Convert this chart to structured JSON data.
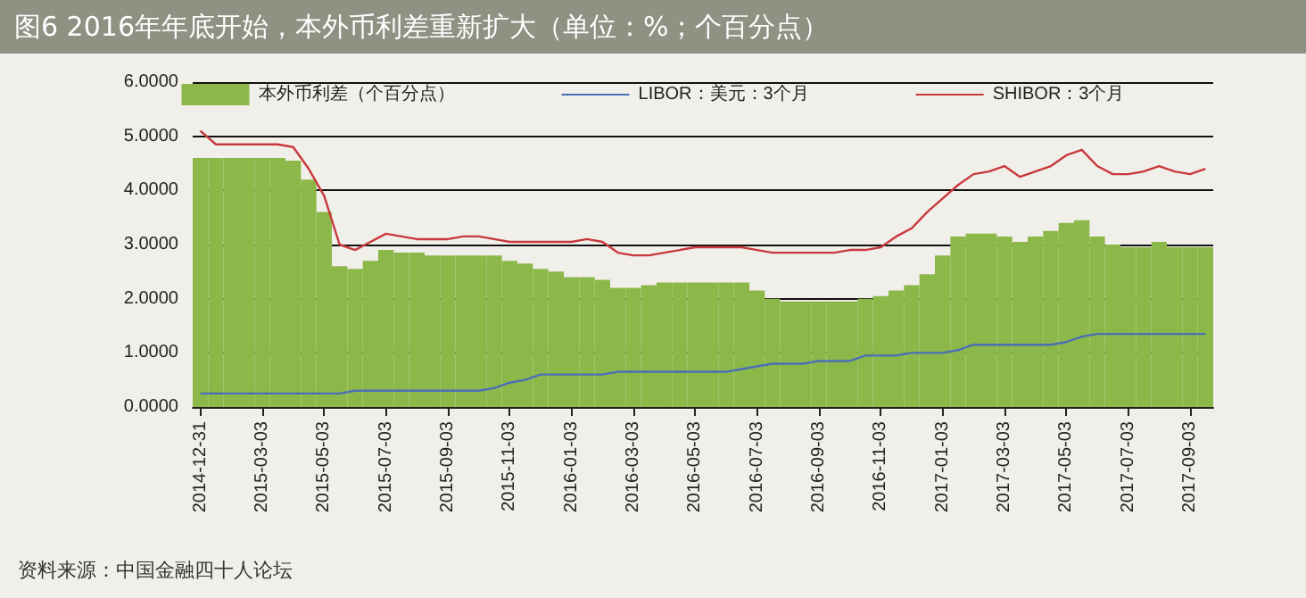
{
  "chart_data": {
    "type": "bar",
    "title": "图6  2016年年底开始，本外币利差重新扩大（单位：%；个百分点）",
    "categories": [
      "2014-12-31",
      null,
      null,
      null,
      "2015-03-03",
      null,
      null,
      null,
      "2015-05-03",
      null,
      null,
      null,
      "2015-07-03",
      null,
      null,
      null,
      "2015-09-03",
      null,
      null,
      null,
      "2015-11-03",
      null,
      null,
      null,
      "2016-01-03",
      null,
      null,
      null,
      "2016-03-03",
      null,
      null,
      null,
      "2016-05-03",
      null,
      null,
      null,
      "2016-07-03",
      null,
      null,
      null,
      "2016-09-03",
      null,
      null,
      null,
      "2016-11-03",
      null,
      null,
      null,
      "2017-01-03",
      null,
      null,
      null,
      "2017-03-03",
      null,
      null,
      null,
      "2017-05-03",
      null,
      null,
      null,
      "2017-07-03",
      null,
      null,
      null,
      "2017-09-03",
      null
    ],
    "series": [
      {
        "name": "本外币利差（个百分点）",
        "color": "#8cb84a",
        "values": [
          4.6,
          4.6,
          4.6,
          4.6,
          4.6,
          4.6,
          4.55,
          4.2,
          3.6,
          2.6,
          2.55,
          2.7,
          2.9,
          2.85,
          2.85,
          2.8,
          2.8,
          2.8,
          2.8,
          2.8,
          2.7,
          2.65,
          2.55,
          2.5,
          2.4,
          2.4,
          2.35,
          2.2,
          2.2,
          2.25,
          2.3,
          2.3,
          2.3,
          2.3,
          2.3,
          2.3,
          2.15,
          2.0,
          1.95,
          1.95,
          1.95,
          1.95,
          1.95,
          2.0,
          2.05,
          2.15,
          2.25,
          2.45,
          2.8,
          3.15,
          3.2,
          3.2,
          3.15,
          3.05,
          3.15,
          3.25,
          3.4,
          3.45,
          3.15,
          3.0,
          2.95,
          2.95,
          3.05,
          2.95,
          2.95,
          2.95
        ]
      },
      {
        "name": "LIBOR：美元：3个月",
        "type": "line",
        "color": "#4a6fb5",
        "values": [
          0.25,
          0.25,
          0.25,
          0.25,
          0.25,
          0.25,
          0.25,
          0.25,
          0.25,
          0.25,
          0.3,
          0.3,
          0.3,
          0.3,
          0.3,
          0.3,
          0.3,
          0.3,
          0.3,
          0.35,
          0.45,
          0.5,
          0.6,
          0.6,
          0.6,
          0.6,
          0.6,
          0.65,
          0.65,
          0.65,
          0.65,
          0.65,
          0.65,
          0.65,
          0.65,
          0.7,
          0.75,
          0.8,
          0.8,
          0.8,
          0.85,
          0.85,
          0.85,
          0.95,
          0.95,
          0.95,
          1.0,
          1.0,
          1.0,
          1.05,
          1.15,
          1.15,
          1.15,
          1.15,
          1.15,
          1.15,
          1.2,
          1.3,
          1.35,
          1.35,
          1.35,
          1.35,
          1.35,
          1.35,
          1.35,
          1.35
        ]
      },
      {
        "name": "SHIBOR：3个月",
        "type": "line",
        "color": "#c8383c",
        "values": [
          5.1,
          4.85,
          4.85,
          4.85,
          4.85,
          4.85,
          4.8,
          4.4,
          3.9,
          3.0,
          2.9,
          3.05,
          3.2,
          3.15,
          3.1,
          3.1,
          3.1,
          3.15,
          3.15,
          3.1,
          3.05,
          3.05,
          3.05,
          3.05,
          3.05,
          3.1,
          3.05,
          2.85,
          2.8,
          2.8,
          2.85,
          2.9,
          2.95,
          2.95,
          2.95,
          2.95,
          2.9,
          2.85,
          2.85,
          2.85,
          2.85,
          2.85,
          2.9,
          2.9,
          2.95,
          3.15,
          3.3,
          3.6,
          3.85,
          4.1,
          4.3,
          4.35,
          4.45,
          4.25,
          4.35,
          4.45,
          4.65,
          4.75,
          4.45,
          4.3,
          4.3,
          4.35,
          4.45,
          4.35,
          4.3,
          4.4
        ]
      }
    ],
    "ylim": [
      0,
      6
    ],
    "yticks": [
      {
        "value": 0,
        "label": "0.0000"
      },
      {
        "value": 1,
        "label": "1.0000"
      },
      {
        "value": 2,
        "label": "2.0000"
      },
      {
        "value": 3,
        "label": "3.0000"
      },
      {
        "value": 4,
        "label": "4.0000"
      },
      {
        "value": 5,
        "label": "5.0000"
      },
      {
        "value": 6,
        "label": "6.0000"
      }
    ],
    "grid": "y",
    "legend": "top",
    "marker": "none",
    "line_style": "solid",
    "annotations": [
      "资料来源：中国金融四十人论坛"
    ]
  }
}
